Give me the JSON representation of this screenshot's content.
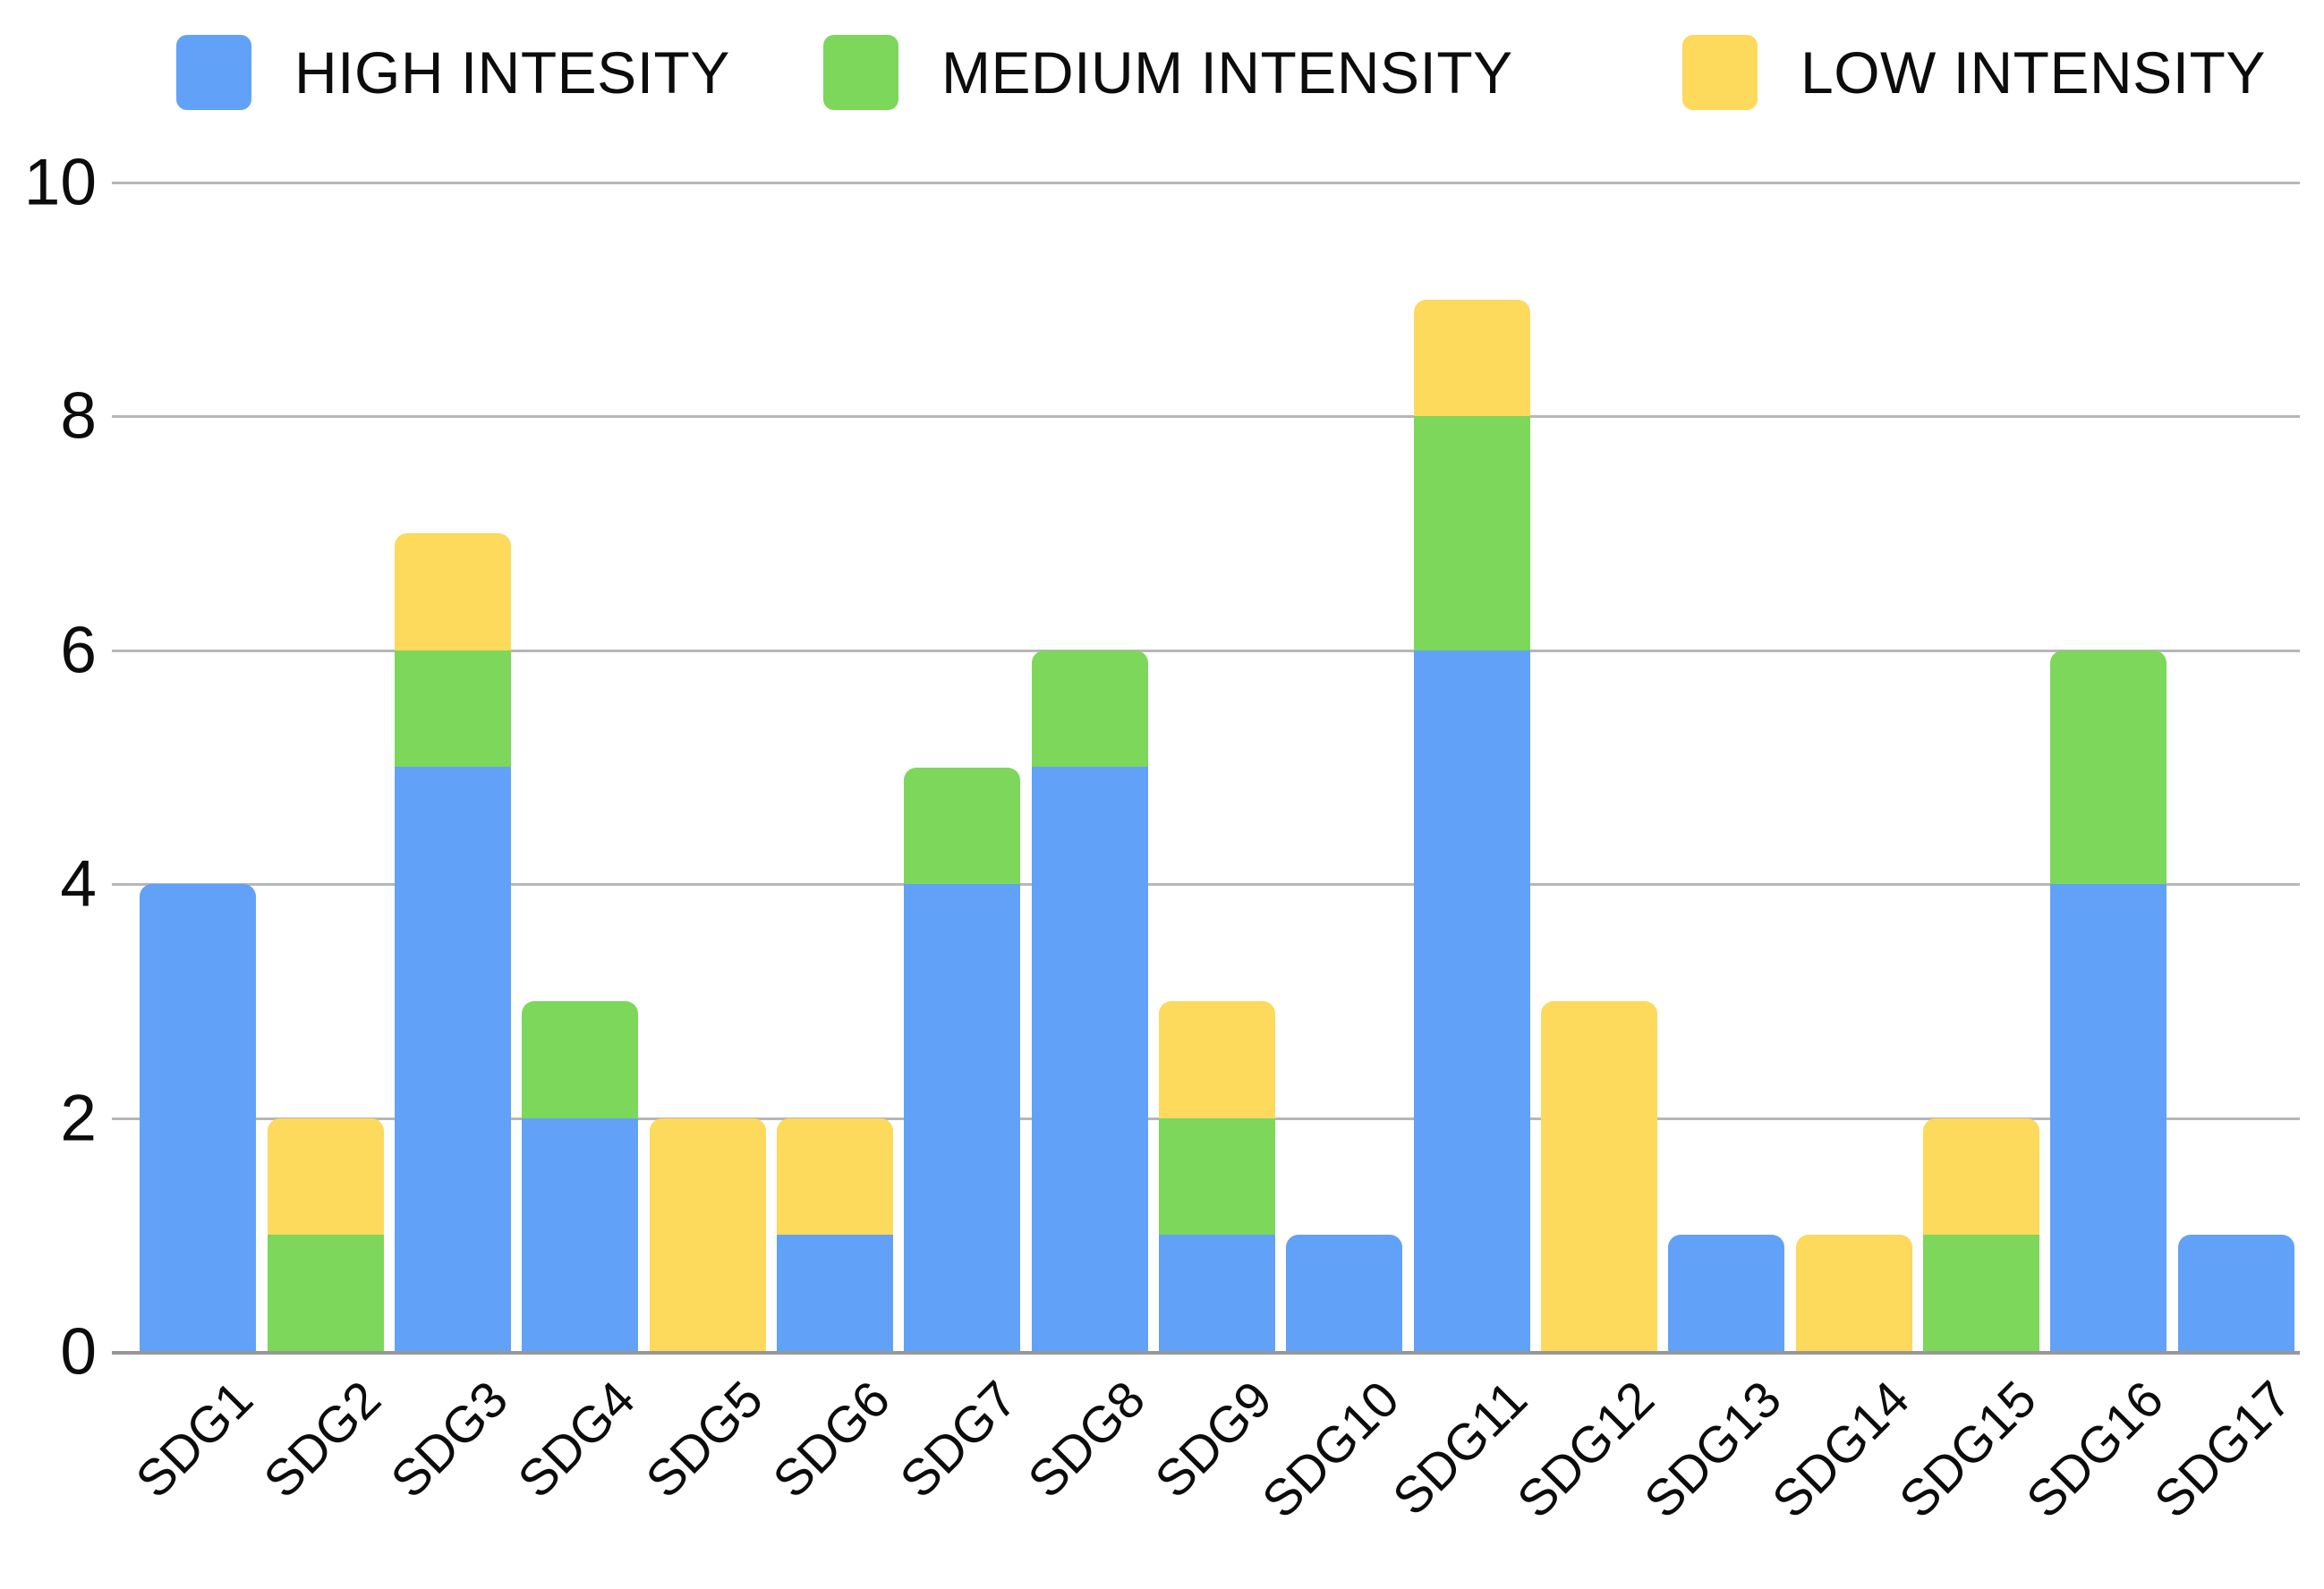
{
  "chart_data": {
    "type": "bar",
    "stacked": true,
    "title": "",
    "xlabel": "",
    "ylabel": "",
    "categories": [
      "SDG1",
      "SDG2",
      "SDG3",
      "SDG4",
      "SDG5",
      "SDG6",
      "SDG7",
      "SDG8",
      "SDG9",
      "SDG10",
      "SDG11",
      "SDG12",
      "SDG13",
      "SDG14",
      "SDG15",
      "SDG16",
      "SDG17"
    ],
    "series": [
      {
        "name": "HIGH INTESITY",
        "color": "#61a2f8",
        "values": [
          4,
          0,
          5,
          2,
          0,
          1,
          4,
          5,
          1,
          1,
          6,
          0,
          1,
          0,
          0,
          4,
          1
        ]
      },
      {
        "name": "MEDIUM INTENSITY",
        "color": "#7cd75a",
        "values": [
          0,
          1,
          1,
          1,
          0,
          0,
          1,
          1,
          1,
          0,
          2,
          0,
          0,
          0,
          1,
          2,
          0
        ]
      },
      {
        "name": "LOW INTENSITY",
        "color": "#fdd95c",
        "values": [
          0,
          1,
          1,
          0,
          2,
          1,
          0,
          0,
          1,
          0,
          1,
          3,
          0,
          1,
          1,
          0,
          0
        ]
      }
    ],
    "totals": [
      4,
      2,
      7,
      3,
      2,
      2,
      5,
      6,
      3,
      1,
      9,
      3,
      1,
      1,
      2,
      6,
      1
    ],
    "ylim": [
      0,
      10
    ],
    "yticks": [
      0,
      2,
      4,
      6,
      8,
      10
    ],
    "grid": true,
    "legend_position": "top",
    "gridline_color": "#b7b7b7",
    "axis_line_color": "#979797",
    "background_color": "#ffffff",
    "text_color": "#0c0c0c"
  }
}
